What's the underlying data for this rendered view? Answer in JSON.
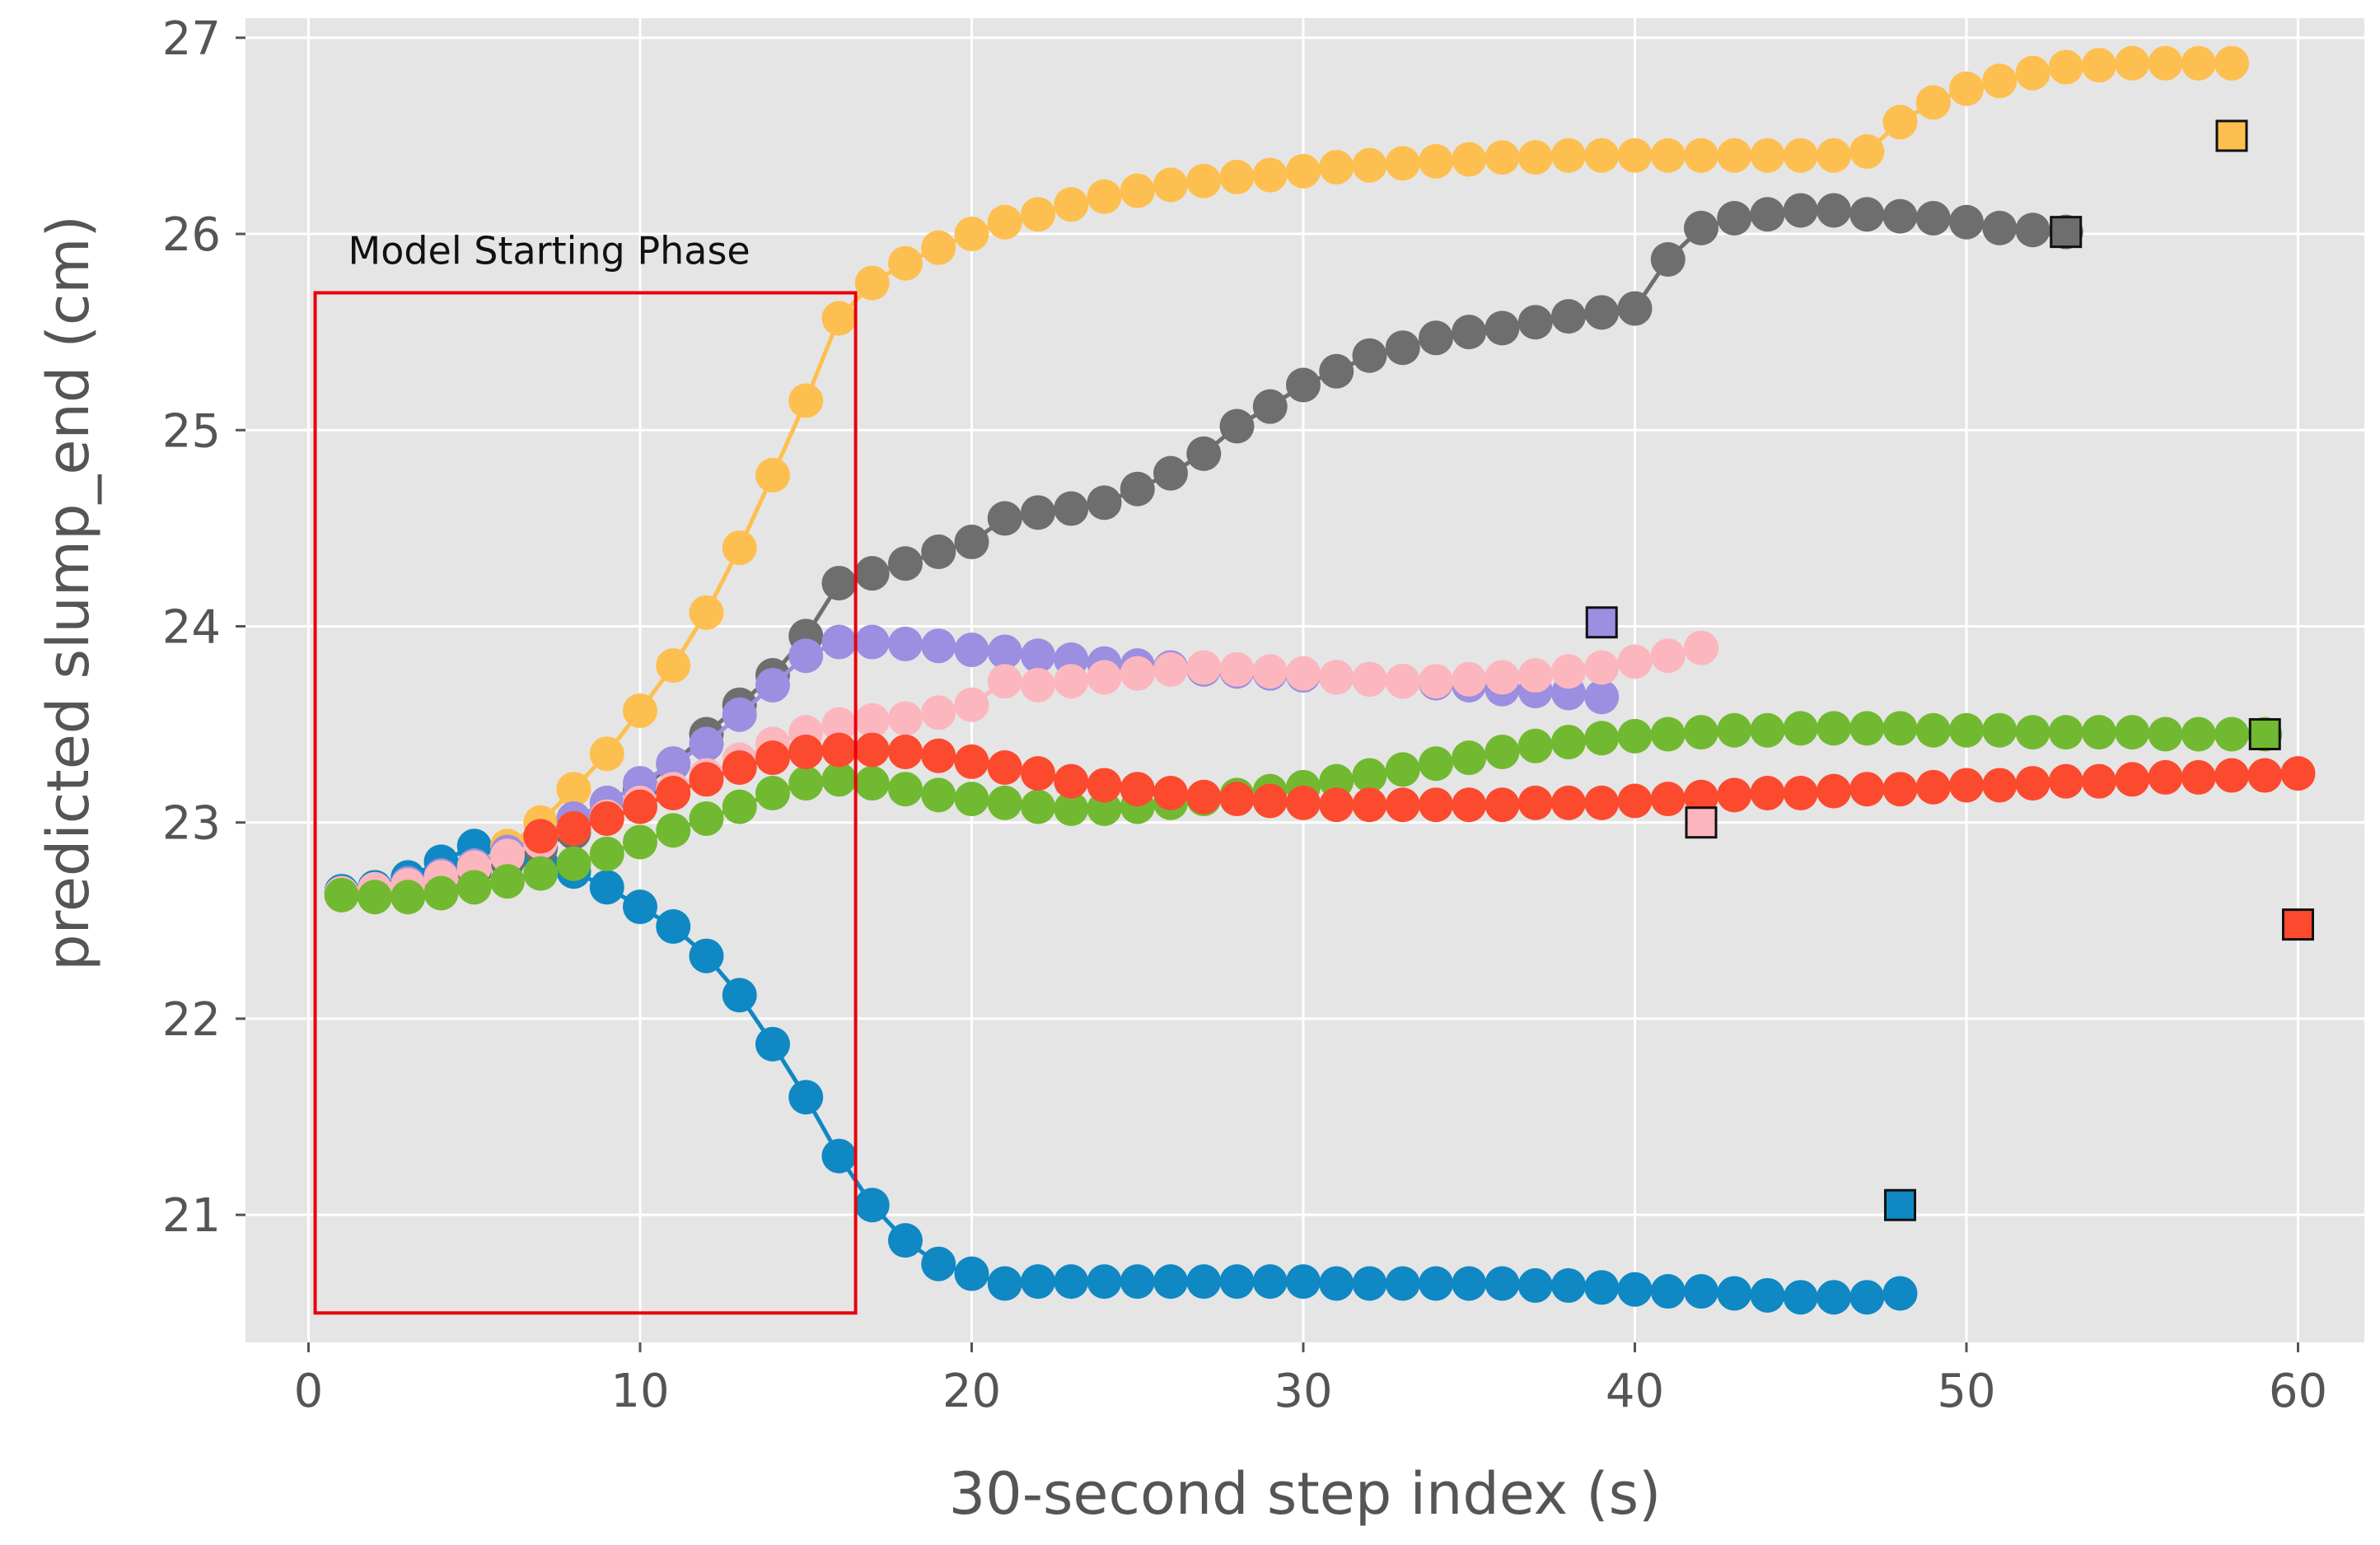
{
  "chart_data": {
    "type": "line",
    "title": "",
    "xlabel": "30-second step index  (s)",
    "ylabel": "predicted slump_end  (cm)",
    "xlim": [
      -1.9,
      62.0
    ],
    "ylim": [
      20.35,
      27.1
    ],
    "xticks": [
      0,
      10,
      20,
      30,
      40,
      50,
      60
    ],
    "yticks": [
      21,
      22,
      23,
      24,
      25,
      26,
      27
    ],
    "grid": true,
    "annotations": [
      {
        "text": "Model Starting Phase",
        "x_range": [
          0.2,
          16.5
        ],
        "y_range": [
          20.5,
          25.7
        ],
        "color": "#e8000b"
      }
    ],
    "series": [
      {
        "name": "blue",
        "color": "#0f88c4",
        "x": [
          1,
          2,
          3,
          4,
          5,
          6,
          7,
          8,
          9,
          10,
          11,
          12,
          13,
          14,
          15,
          16,
          17,
          18,
          19,
          20,
          21,
          22,
          23,
          24,
          25,
          26,
          27,
          28,
          29,
          30,
          31,
          32,
          33,
          34,
          35,
          36,
          37,
          38,
          39,
          40,
          41,
          42,
          43,
          44,
          45,
          46,
          47,
          48
        ],
        "y": [
          22.65,
          22.67,
          22.72,
          22.8,
          22.88,
          22.85,
          22.8,
          22.75,
          22.67,
          22.57,
          22.47,
          22.32,
          22.12,
          21.87,
          21.6,
          21.3,
          21.05,
          20.87,
          20.75,
          20.7,
          20.65,
          20.66,
          20.66,
          20.66,
          20.66,
          20.66,
          20.66,
          20.66,
          20.66,
          20.66,
          20.65,
          20.65,
          20.65,
          20.65,
          20.65,
          20.65,
          20.64,
          20.64,
          20.63,
          20.62,
          20.61,
          20.61,
          20.6,
          20.59,
          20.58,
          20.58,
          20.58,
          20.6
        ],
        "target": {
          "x": 48,
          "y": 21.05
        }
      },
      {
        "name": "orange",
        "color": "#fdbf4f",
        "x": [
          1,
          2,
          3,
          4,
          5,
          6,
          7,
          8,
          9,
          10,
          11,
          12,
          13,
          14,
          15,
          16,
          17,
          18,
          19,
          20,
          21,
          22,
          23,
          24,
          25,
          26,
          27,
          28,
          29,
          30,
          31,
          32,
          33,
          34,
          35,
          36,
          37,
          38,
          39,
          40,
          41,
          42,
          43,
          44,
          45,
          46,
          47,
          48,
          49,
          50,
          51,
          52,
          53,
          54,
          55,
          56,
          57,
          58
        ],
        "y": [
          22.63,
          22.65,
          22.68,
          22.72,
          22.78,
          22.88,
          23.0,
          23.17,
          23.35,
          23.57,
          23.8,
          24.07,
          24.4,
          24.77,
          25.15,
          25.57,
          25.75,
          25.85,
          25.93,
          26.0,
          26.06,
          26.1,
          26.15,
          26.19,
          26.22,
          26.25,
          26.27,
          26.29,
          26.3,
          26.32,
          26.34,
          26.35,
          26.36,
          26.37,
          26.38,
          26.39,
          26.39,
          26.4,
          26.4,
          26.4,
          26.4,
          26.4,
          26.4,
          26.4,
          26.4,
          26.4,
          26.42,
          26.57,
          26.67,
          26.74,
          26.78,
          26.82,
          26.85,
          26.86,
          26.87,
          26.87,
          26.87,
          26.87
        ],
        "target": {
          "x": 58,
          "y": 26.5
        }
      },
      {
        "name": "gray",
        "color": "#6e6e6e",
        "x": [
          1,
          2,
          3,
          4,
          5,
          6,
          7,
          8,
          9,
          10,
          11,
          12,
          13,
          14,
          15,
          16,
          17,
          18,
          19,
          20,
          21,
          22,
          23,
          24,
          25,
          26,
          27,
          28,
          29,
          30,
          31,
          32,
          33,
          34,
          35,
          36,
          37,
          38,
          39,
          40,
          41,
          42,
          43,
          44,
          45,
          46,
          47,
          48,
          49,
          50,
          51,
          52,
          53
        ],
        "y": [
          22.64,
          22.65,
          22.67,
          22.7,
          22.75,
          22.8,
          22.87,
          22.95,
          23.05,
          23.17,
          23.3,
          23.45,
          23.6,
          23.75,
          23.95,
          24.22,
          24.27,
          24.32,
          24.38,
          24.43,
          24.55,
          24.58,
          24.6,
          24.63,
          24.7,
          24.78,
          24.88,
          25.02,
          25.12,
          25.23,
          25.3,
          25.38,
          25.42,
          25.47,
          25.5,
          25.52,
          25.55,
          25.58,
          25.6,
          25.62,
          25.87,
          26.03,
          26.08,
          26.1,
          26.12,
          26.12,
          26.1,
          26.09,
          26.08,
          26.06,
          26.03,
          26.02,
          26.01
        ],
        "target": {
          "x": 53,
          "y": 26.01
        }
      },
      {
        "name": "purple",
        "color": "#9c8ee0",
        "x": [
          1,
          2,
          3,
          4,
          5,
          6,
          7,
          8,
          9,
          10,
          11,
          12,
          13,
          14,
          15,
          16,
          17,
          18,
          19,
          20,
          21,
          22,
          23,
          24,
          25,
          26,
          27,
          28,
          29,
          30,
          31,
          32,
          33,
          34,
          35,
          36,
          37,
          38,
          39
        ],
        "y": [
          22.64,
          22.66,
          22.69,
          22.73,
          22.78,
          22.85,
          22.93,
          23.02,
          23.1,
          23.2,
          23.3,
          23.4,
          23.55,
          23.7,
          23.85,
          23.92,
          23.92,
          23.91,
          23.9,
          23.88,
          23.87,
          23.85,
          23.83,
          23.81,
          23.8,
          23.79,
          23.78,
          23.77,
          23.76,
          23.75,
          23.74,
          23.73,
          23.72,
          23.71,
          23.7,
          23.68,
          23.67,
          23.66,
          23.64
        ],
        "target": {
          "x": 39,
          "y": 24.02
        }
      },
      {
        "name": "pink",
        "color": "#fcb6be",
        "x": [
          1,
          2,
          3,
          4,
          5,
          6,
          7,
          8,
          9,
          10,
          11,
          12,
          13,
          14,
          15,
          16,
          17,
          18,
          19,
          20,
          21,
          22,
          23,
          24,
          25,
          26,
          27,
          28,
          29,
          30,
          31,
          32,
          33,
          34,
          35,
          36,
          37,
          38,
          39,
          40,
          41,
          42
        ],
        "y": [
          22.64,
          22.66,
          22.68,
          22.72,
          22.77,
          22.83,
          22.9,
          22.97,
          23.03,
          23.1,
          23.17,
          23.24,
          23.32,
          23.4,
          23.46,
          23.5,
          23.52,
          23.53,
          23.56,
          23.6,
          23.72,
          23.7,
          23.72,
          23.74,
          23.76,
          23.78,
          23.79,
          23.78,
          23.77,
          23.76,
          23.74,
          23.73,
          23.72,
          23.72,
          23.73,
          23.74,
          23.75,
          23.77,
          23.79,
          23.82,
          23.85,
          23.89
        ],
        "target": {
          "x": 42,
          "y": 23.0
        }
      },
      {
        "name": "green",
        "color": "#72b932",
        "x": [
          1,
          2,
          3,
          4,
          5,
          6,
          7,
          8,
          9,
          10,
          11,
          12,
          13,
          14,
          15,
          16,
          17,
          18,
          19,
          20,
          21,
          22,
          23,
          24,
          25,
          26,
          27,
          28,
          29,
          30,
          31,
          32,
          33,
          34,
          35,
          36,
          37,
          38,
          39,
          40,
          41,
          42,
          43,
          44,
          45,
          46,
          47,
          48,
          49,
          50,
          51,
          52,
          53,
          54,
          55,
          56,
          57,
          58,
          59
        ],
        "y": [
          22.63,
          22.62,
          22.62,
          22.64,
          22.67,
          22.7,
          22.74,
          22.79,
          22.84,
          22.9,
          22.96,
          23.02,
          23.08,
          23.15,
          23.2,
          23.22,
          23.2,
          23.17,
          23.14,
          23.12,
          23.1,
          23.08,
          23.07,
          23.07,
          23.08,
          23.1,
          23.12,
          23.14,
          23.16,
          23.18,
          23.21,
          23.24,
          23.27,
          23.3,
          23.33,
          23.36,
          23.39,
          23.41,
          23.43,
          23.44,
          23.45,
          23.46,
          23.47,
          23.47,
          23.48,
          23.48,
          23.48,
          23.48,
          23.47,
          23.47,
          23.47,
          23.46,
          23.46,
          23.46,
          23.46,
          23.45,
          23.45,
          23.45,
          23.45
        ],
        "target": {
          "x": 59,
          "y": 23.45
        }
      },
      {
        "name": "red",
        "color": "#fb4a2e",
        "x": [
          7,
          8,
          9,
          10,
          11,
          12,
          13,
          14,
          15,
          16,
          17,
          18,
          19,
          20,
          21,
          22,
          23,
          24,
          25,
          26,
          27,
          28,
          29,
          30,
          31,
          32,
          33,
          34,
          35,
          36,
          37,
          38,
          39,
          40,
          41,
          42,
          43,
          44,
          45,
          46,
          47,
          48,
          49,
          50,
          51,
          52,
          53,
          54,
          55,
          56,
          57,
          58,
          59,
          60
        ],
        "y": [
          22.93,
          22.97,
          23.02,
          23.08,
          23.15,
          23.22,
          23.28,
          23.33,
          23.36,
          23.37,
          23.37,
          23.36,
          23.34,
          23.31,
          23.28,
          23.25,
          23.21,
          23.19,
          23.17,
          23.15,
          23.13,
          23.12,
          23.11,
          23.1,
          23.09,
          23.09,
          23.09,
          23.09,
          23.09,
          23.09,
          23.1,
          23.1,
          23.1,
          23.11,
          23.12,
          23.13,
          23.14,
          23.15,
          23.15,
          23.16,
          23.17,
          23.17,
          23.18,
          23.19,
          23.19,
          23.2,
          23.21,
          23.21,
          23.22,
          23.23,
          23.23,
          23.24,
          23.24,
          23.25
        ],
        "target": {
          "x": 60,
          "y": 22.48
        }
      }
    ]
  }
}
